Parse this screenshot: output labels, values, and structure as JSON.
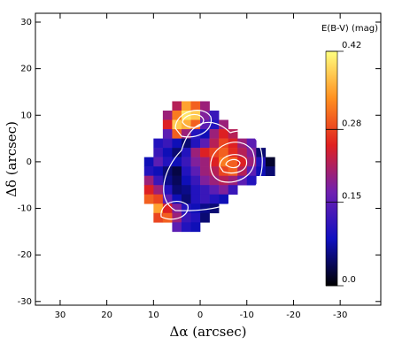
{
  "chart_data": {
    "type": "heatmap",
    "xlabel": "Δα (arcsec)",
    "ylabel": "Δδ (arcsec)",
    "xlim": [
      35.3,
      -38.7
    ],
    "ylim": [
      -30.8,
      31.9
    ],
    "xticks": [
      30,
      20,
      10,
      0,
      -10,
      -20,
      -30
    ],
    "yticks": [
      30,
      20,
      10,
      0,
      -10,
      -20,
      -30
    ],
    "x": [
      11,
      9,
      7,
      5,
      3,
      1,
      -1,
      -3,
      -5,
      -7,
      -9,
      -11,
      -13,
      -15
    ],
    "y": [
      12,
      10,
      8,
      6,
      4,
      2,
      0,
      -2,
      -4,
      -6,
      -8,
      -10,
      -12,
      -14
    ],
    "z": [
      [
        null,
        null,
        null,
        0.22,
        0.35,
        0.3,
        0.2,
        null,
        null,
        null,
        null,
        null,
        null,
        null
      ],
      [
        null,
        null,
        0.2,
        0.32,
        0.4,
        0.38,
        0.18,
        0.12,
        null,
        null,
        null,
        null,
        null,
        null
      ],
      [
        null,
        null,
        0.25,
        0.38,
        0.36,
        0.3,
        0.15,
        0.1,
        0.2,
        null,
        null,
        null,
        null,
        null
      ],
      [
        null,
        null,
        0.15,
        0.3,
        0.2,
        0.1,
        0.08,
        0.2,
        0.25,
        0.22,
        null,
        null,
        null,
        null
      ],
      [
        null,
        0.1,
        0.12,
        0.08,
        0.05,
        0.1,
        0.15,
        0.22,
        0.28,
        0.25,
        0.2,
        0.15,
        null,
        null
      ],
      [
        null,
        0.12,
        0.08,
        0.05,
        0.1,
        0.2,
        0.25,
        0.28,
        0.3,
        0.26,
        0.22,
        0.18,
        0.05,
        null
      ],
      [
        0.08,
        0.15,
        0.1,
        0.08,
        0.12,
        0.18,
        0.2,
        0.25,
        0.32,
        0.3,
        0.25,
        0.2,
        0.1,
        0.02
      ],
      [
        0.1,
        0.08,
        0.05,
        0.03,
        0.1,
        0.15,
        0.2,
        0.22,
        0.28,
        0.3,
        0.22,
        0.15,
        0.08,
        0.05
      ],
      [
        0.2,
        0.12,
        0.06,
        0.04,
        0.08,
        0.12,
        0.18,
        0.2,
        0.22,
        0.2,
        0.15,
        0.1,
        null,
        null
      ],
      [
        0.25,
        0.2,
        0.1,
        0.05,
        0.06,
        0.1,
        0.12,
        0.15,
        0.18,
        0.12,
        null,
        null,
        null,
        null
      ],
      [
        0.3,
        0.28,
        0.15,
        0.08,
        0.05,
        0.1,
        0.12,
        0.1,
        0.08,
        null,
        null,
        null,
        null,
        null
      ],
      [
        null,
        0.35,
        0.25,
        0.18,
        0.1,
        0.08,
        0.06,
        0.05,
        null,
        null,
        null,
        null,
        null,
        null
      ],
      [
        null,
        0.28,
        0.3,
        0.2,
        0.12,
        0.1,
        0.05,
        null,
        null,
        null,
        null,
        null,
        null,
        null
      ],
      [
        null,
        null,
        null,
        0.15,
        0.1,
        0.08,
        null,
        null,
        null,
        null,
        null,
        null,
        null,
        null
      ]
    ],
    "colorbar_label": "E(B-V) (mag)",
    "clim": [
      0,
      0.42
    ],
    "cticks": [
      {
        "value": 0,
        "label": "0.0"
      },
      0.15,
      0.28,
      0.42
    ],
    "colormap": [
      "#000000",
      "#1010c0",
      "#7020b0",
      "#e02020",
      "#ff9020",
      "#ffff80"
    ]
  }
}
